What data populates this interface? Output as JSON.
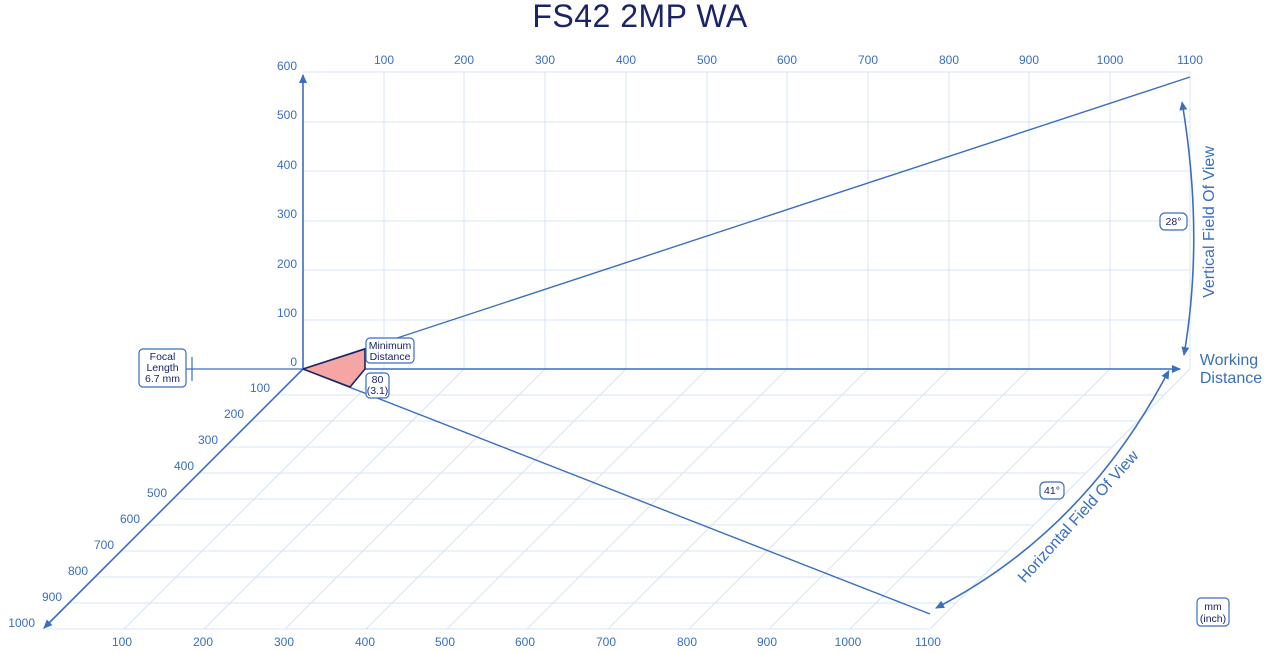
{
  "title": "FS42 2MP WA",
  "top_ticks": [
    "100",
    "200",
    "300",
    "400",
    "500",
    "600",
    "700",
    "800",
    "900",
    "1000",
    "1100"
  ],
  "vert_ticks": [
    "0",
    "100",
    "200",
    "300",
    "400",
    "500",
    "600"
  ],
  "depth_ticks": [
    "100",
    "200",
    "300",
    "400",
    "500",
    "600",
    "700",
    "800",
    "900",
    "1000"
  ],
  "bottom_ticks": [
    "100",
    "200",
    "300",
    "400",
    "500",
    "600",
    "700",
    "800",
    "900",
    "1000",
    "1100"
  ],
  "focal_box": {
    "line1": "Focal",
    "line2": "Length",
    "line3": "6.7 mm"
  },
  "min_dist_box": {
    "line1": "Minimum",
    "line2": "Distance"
  },
  "min_dist_value": {
    "line1": "80",
    "line2": "(3.1)"
  },
  "vfov_label": "Vertical Field Of View",
  "vfov_angle": "28°",
  "hfov_label": "Horizontal Field Of View",
  "hfov_angle": "41°",
  "working_distance": {
    "line1": "Working",
    "line2": "Distance"
  },
  "units_box": {
    "line1": "mm",
    "line2": "(inch)"
  },
  "colors": {
    "axis": "#3a6ec0",
    "grid": "#d7e4f3",
    "dark": "#1b2466",
    "highlight": "#f6a5a5"
  }
}
